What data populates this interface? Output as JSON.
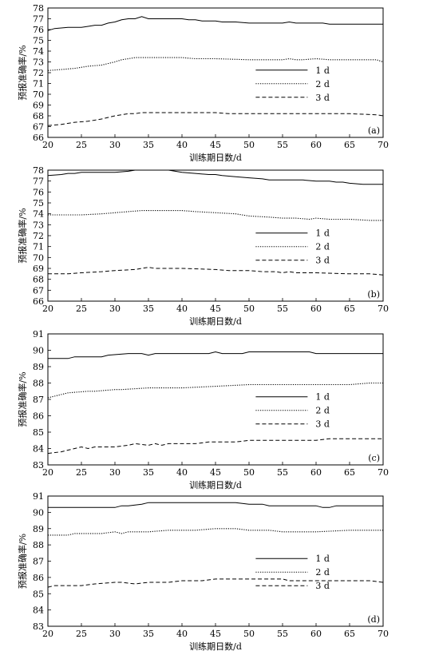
{
  "chart_data": [
    {
      "type": "line",
      "panel_label": "(a)",
      "xlabel": "训练期日数/d",
      "ylabel": "预报准确率/%",
      "xlim": [
        20,
        70
      ],
      "ylim": [
        66,
        78
      ],
      "xticks": [
        20,
        25,
        30,
        35,
        40,
        45,
        50,
        55,
        60,
        65,
        70
      ],
      "yticks": [
        66,
        67,
        68,
        69,
        70,
        71,
        72,
        73,
        74,
        75,
        76,
        77,
        78
      ],
      "grid": false,
      "legend": "right",
      "series": [
        {
          "name": "1 d",
          "style": "solid",
          "x": [
            20,
            21,
            23,
            25,
            26,
            27,
            28,
            29,
            30,
            31,
            32,
            33,
            34,
            35,
            36,
            38,
            40,
            41,
            42,
            43,
            45,
            46,
            48,
            50,
            52,
            55,
            56,
            57,
            60,
            61,
            62,
            65,
            70
          ],
          "y": [
            75.9,
            76.1,
            76.2,
            76.2,
            76.3,
            76.4,
            76.4,
            76.6,
            76.7,
            76.9,
            77.0,
            77.0,
            77.2,
            77.0,
            77.0,
            77.0,
            77.0,
            76.9,
            76.9,
            76.8,
            76.8,
            76.7,
            76.7,
            76.6,
            76.6,
            76.6,
            76.7,
            76.6,
            76.6,
            76.6,
            76.5,
            76.5,
            76.5
          ]
        },
        {
          "name": "2 d",
          "style": "dotted",
          "x": [
            20,
            22,
            24,
            26,
            28,
            30,
            31,
            32,
            33,
            35,
            40,
            42,
            45,
            50,
            55,
            56,
            57,
            58,
            60,
            62,
            65,
            69,
            70
          ],
          "y": [
            72.2,
            72.3,
            72.4,
            72.6,
            72.7,
            73.0,
            73.2,
            73.3,
            73.4,
            73.4,
            73.4,
            73.3,
            73.3,
            73.2,
            73.2,
            73.3,
            73.2,
            73.2,
            73.3,
            73.2,
            73.2,
            73.2,
            73.0
          ]
        },
        {
          "name": "3 d",
          "style": "dashed",
          "x": [
            20,
            22,
            24,
            26,
            28,
            30,
            31,
            32,
            33,
            34,
            40,
            45,
            47,
            50,
            55,
            60,
            62,
            65,
            69,
            70
          ],
          "y": [
            67.1,
            67.2,
            67.4,
            67.5,
            67.7,
            68.0,
            68.1,
            68.2,
            68.2,
            68.3,
            68.3,
            68.3,
            68.2,
            68.2,
            68.2,
            68.2,
            68.2,
            68.2,
            68.1,
            68.0
          ]
        }
      ]
    },
    {
      "type": "line",
      "panel_label": "(b)",
      "xlabel": "训练期日数/d",
      "ylabel": "预报准确率/%",
      "xlim": [
        20,
        70
      ],
      "ylim": [
        66,
        78
      ],
      "xticks": [
        20,
        25,
        30,
        35,
        40,
        45,
        50,
        55,
        60,
        65,
        70
      ],
      "yticks": [
        66,
        67,
        68,
        69,
        70,
        71,
        72,
        73,
        74,
        75,
        76,
        77,
        78
      ],
      "grid": false,
      "legend": "right",
      "series": [
        {
          "name": "1 d",
          "style": "solid",
          "x": [
            20,
            22,
            23,
            24,
            25,
            30,
            32,
            33,
            34,
            35,
            38,
            40,
            42,
            44,
            45,
            46,
            48,
            50,
            52,
            53,
            55,
            58,
            60,
            62,
            63,
            64,
            65,
            67,
            70
          ],
          "y": [
            77.5,
            77.6,
            77.7,
            77.7,
            77.8,
            77.8,
            77.9,
            78.0,
            78.0,
            78.0,
            78.0,
            77.8,
            77.7,
            77.6,
            77.6,
            77.5,
            77.4,
            77.3,
            77.2,
            77.1,
            77.1,
            77.1,
            77.0,
            77.0,
            76.9,
            76.9,
            76.8,
            76.7,
            76.7
          ]
        },
        {
          "name": "2 d",
          "style": "dotted",
          "x": [
            20,
            25,
            28,
            30,
            32,
            34,
            35,
            40,
            42,
            45,
            48,
            50,
            53,
            55,
            57,
            59,
            60,
            62,
            65,
            68,
            70
          ],
          "y": [
            73.9,
            73.9,
            74.0,
            74.1,
            74.2,
            74.3,
            74.3,
            74.3,
            74.2,
            74.1,
            74.0,
            73.8,
            73.7,
            73.6,
            73.6,
            73.5,
            73.6,
            73.5,
            73.5,
            73.4,
            73.4
          ]
        },
        {
          "name": "3 d",
          "style": "dashed",
          "x": [
            20,
            23,
            25,
            28,
            30,
            33,
            34,
            35,
            36,
            40,
            45,
            47,
            50,
            52,
            54,
            55,
            56,
            57,
            60,
            65,
            68,
            70
          ],
          "y": [
            68.5,
            68.5,
            68.6,
            68.7,
            68.8,
            68.9,
            69.0,
            69.1,
            69.0,
            69.0,
            68.9,
            68.8,
            68.8,
            68.7,
            68.7,
            68.6,
            68.7,
            68.6,
            68.6,
            68.5,
            68.5,
            68.4
          ]
        }
      ]
    },
    {
      "type": "line",
      "panel_label": "(c)",
      "xlabel": "训练期日数/d",
      "ylabel": "预报准确率/%",
      "xlim": [
        20,
        70
      ],
      "ylim": [
        83,
        91
      ],
      "xticks": [
        20,
        25,
        30,
        35,
        40,
        45,
        50,
        55,
        60,
        65,
        70
      ],
      "yticks": [
        83,
        84,
        85,
        86,
        87,
        88,
        89,
        90,
        91
      ],
      "grid": false,
      "legend": "right",
      "series": [
        {
          "name": "1 d",
          "style": "solid",
          "x": [
            20,
            23,
            24,
            28,
            29,
            32,
            34,
            35,
            36,
            40,
            44,
            45,
            46,
            49,
            50,
            55,
            59,
            60,
            65,
            70
          ],
          "y": [
            89.5,
            89.5,
            89.6,
            89.6,
            89.7,
            89.8,
            89.8,
            89.7,
            89.8,
            89.8,
            89.8,
            89.9,
            89.8,
            89.8,
            89.9,
            89.9,
            89.9,
            89.8,
            89.8,
            89.8
          ]
        },
        {
          "name": "2 d",
          "style": "dotted",
          "x": [
            20,
            22,
            23,
            26,
            27,
            30,
            31,
            35,
            40,
            45,
            50,
            55,
            60,
            65,
            68,
            70
          ],
          "y": [
            87.1,
            87.3,
            87.4,
            87.5,
            87.5,
            87.6,
            87.6,
            87.7,
            87.7,
            87.8,
            87.9,
            87.9,
            87.9,
            87.9,
            88.0,
            88.0
          ]
        },
        {
          "name": "3 d",
          "style": "dashed",
          "x": [
            20,
            22,
            23,
            24,
            25,
            26,
            27,
            30,
            32,
            33,
            35,
            36,
            37,
            38,
            40,
            42,
            44,
            46,
            48,
            50,
            55,
            60,
            62,
            65,
            70
          ],
          "y": [
            83.7,
            83.8,
            83.9,
            84.0,
            84.1,
            84.0,
            84.1,
            84.1,
            84.2,
            84.3,
            84.2,
            84.3,
            84.2,
            84.3,
            84.3,
            84.3,
            84.4,
            84.4,
            84.4,
            84.5,
            84.5,
            84.5,
            84.6,
            84.6,
            84.6
          ]
        }
      ]
    },
    {
      "type": "line",
      "panel_label": "(d)",
      "xlabel": "训练期日数/d",
      "ylabel": "预报准确率/%",
      "xlim": [
        20,
        70
      ],
      "ylim": [
        83,
        91
      ],
      "xticks": [
        20,
        25,
        30,
        35,
        40,
        45,
        50,
        55,
        60,
        65,
        70
      ],
      "yticks": [
        83,
        84,
        85,
        86,
        87,
        88,
        89,
        90,
        91
      ],
      "grid": false,
      "legend": "right",
      "series": [
        {
          "name": "1 d",
          "style": "solid",
          "x": [
            20,
            22,
            23,
            25,
            27,
            30,
            31,
            32,
            34,
            35,
            40,
            45,
            48,
            50,
            52,
            53,
            55,
            60,
            61,
            62,
            63,
            65,
            70
          ],
          "y": [
            90.3,
            90.3,
            90.3,
            90.3,
            90.3,
            90.3,
            90.4,
            90.4,
            90.5,
            90.6,
            90.6,
            90.6,
            90.6,
            90.5,
            90.5,
            90.4,
            90.4,
            90.4,
            90.3,
            90.3,
            90.4,
            90.4,
            90.4
          ]
        },
        {
          "name": "2 d",
          "style": "dotted",
          "x": [
            20,
            23,
            24,
            25,
            28,
            30,
            31,
            32,
            35,
            38,
            40,
            42,
            45,
            47,
            48,
            50,
            53,
            55,
            60,
            65,
            70
          ],
          "y": [
            88.6,
            88.6,
            88.7,
            88.7,
            88.7,
            88.8,
            88.7,
            88.8,
            88.8,
            88.9,
            88.9,
            88.9,
            89.0,
            89.0,
            89.0,
            88.9,
            88.9,
            88.8,
            88.8,
            88.9,
            88.9
          ]
        },
        {
          "name": "3 d",
          "style": "dashed",
          "x": [
            20,
            21,
            25,
            27,
            30,
            31,
            33,
            35,
            38,
            40,
            43,
            45,
            50,
            55,
            56,
            60,
            65,
            68,
            70
          ],
          "y": [
            85.4,
            85.5,
            85.5,
            85.6,
            85.7,
            85.7,
            85.6,
            85.7,
            85.7,
            85.8,
            85.8,
            85.9,
            85.9,
            85.9,
            85.8,
            85.8,
            85.8,
            85.8,
            85.7
          ]
        }
      ]
    }
  ]
}
